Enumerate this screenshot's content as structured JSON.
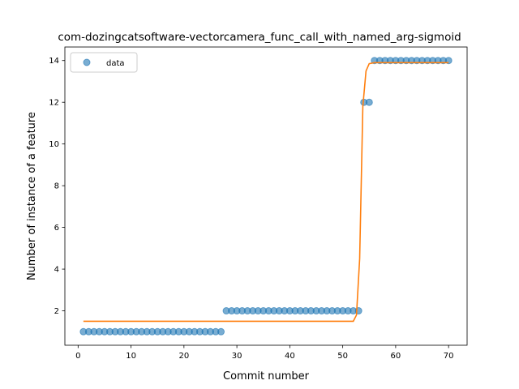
{
  "chart_data": {
    "type": "scatter",
    "title": "com-dozingcatsoftware-vectorcamera_func_call_with_named_arg-sigmoid",
    "xlabel": "Commit number",
    "ylabel": "Number of instance of a feature",
    "xlim": [
      -2.5,
      73.5
    ],
    "ylim": [
      0.35,
      14.65
    ],
    "xticks": [
      0,
      10,
      20,
      30,
      40,
      50,
      60,
      70
    ],
    "yticks": [
      2,
      4,
      6,
      8,
      10,
      12,
      14
    ],
    "grid": false,
    "legend": {
      "placement": "top-left",
      "entries": [
        "data"
      ]
    },
    "series": [
      {
        "name": "data",
        "kind": "scatter",
        "color": "#1f77b4",
        "x": [
          1,
          2,
          3,
          4,
          5,
          6,
          7,
          8,
          9,
          10,
          11,
          12,
          13,
          14,
          15,
          16,
          17,
          18,
          19,
          20,
          21,
          22,
          23,
          24,
          25,
          26,
          27,
          28,
          29,
          30,
          31,
          32,
          33,
          34,
          35,
          36,
          37,
          38,
          39,
          40,
          41,
          42,
          43,
          44,
          45,
          46,
          47,
          48,
          49,
          50,
          51,
          52,
          53,
          54,
          55,
          56,
          57,
          58,
          59,
          60,
          61,
          62,
          63,
          64,
          65,
          66,
          67,
          68,
          69,
          70
        ],
        "y": [
          1,
          1,
          1,
          1,
          1,
          1,
          1,
          1,
          1,
          1,
          1,
          1,
          1,
          1,
          1,
          1,
          1,
          1,
          1,
          1,
          1,
          1,
          1,
          1,
          1,
          1,
          1,
          2,
          2,
          2,
          2,
          2,
          2,
          2,
          2,
          2,
          2,
          2,
          2,
          2,
          2,
          2,
          2,
          2,
          2,
          2,
          2,
          2,
          2,
          2,
          2,
          2,
          2,
          12,
          12,
          14,
          14,
          14,
          14,
          14,
          14,
          14,
          14,
          14,
          14,
          14,
          14,
          14,
          14,
          14
        ]
      },
      {
        "kind": "line",
        "color": "#ff7f0e",
        "x": [
          1,
          52,
          52.6,
          53.2,
          53.8,
          54.4,
          55,
          56,
          70
        ],
        "y": [
          1.5,
          1.5,
          1.8,
          4.5,
          11.8,
          13.5,
          13.85,
          13.9,
          13.9
        ]
      }
    ]
  }
}
